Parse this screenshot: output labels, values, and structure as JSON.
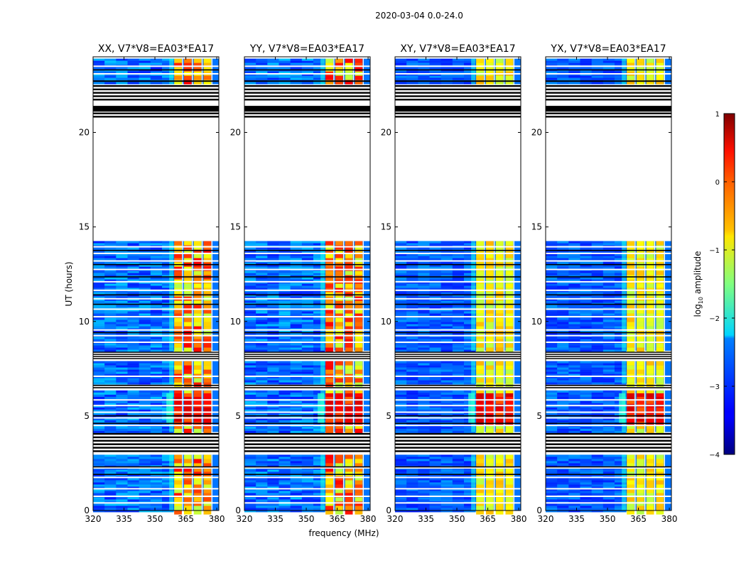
{
  "figure": {
    "suptitle": "2020-03-04 0.0-24.0",
    "xlabel": "frequency (MHz)",
    "ylabel": "UT (hours)",
    "colorbar_label_prefix": "log",
    "colorbar_label_sub": "10",
    "colorbar_label_suffix": " amplitude",
    "colorbar_ticks": [
      {
        "value": 1,
        "label": "1"
      },
      {
        "value": 0,
        "label": "0"
      },
      {
        "value": -1,
        "label": "−1"
      },
      {
        "value": -2,
        "label": "−2"
      },
      {
        "value": -3,
        "label": "−3"
      },
      {
        "value": -4,
        "label": "−4"
      }
    ]
  },
  "chart_data": [
    {
      "type": "heatmap",
      "title": "XX, V7*V8=EA03*EA17",
      "pol": "XX",
      "xlim": [
        320,
        381
      ],
      "ylim": [
        0,
        24
      ],
      "xticks": [
        320,
        335,
        350,
        365,
        380
      ],
      "yticks": [
        0,
        5,
        10,
        15,
        20
      ],
      "clim": [
        -4,
        1
      ],
      "band_start_mhz": 359,
      "band_end_mhz": 378
    },
    {
      "type": "heatmap",
      "title": "YY, V7*V8=EA03*EA17",
      "pol": "YY",
      "xlim": [
        320,
        381
      ],
      "ylim": [
        0,
        24
      ],
      "xticks": [
        320,
        335,
        350,
        365,
        380
      ],
      "yticks": [
        0,
        5,
        10,
        15,
        20
      ],
      "clim": [
        -4,
        1
      ],
      "band_start_mhz": 359,
      "band_end_mhz": 378
    },
    {
      "type": "heatmap",
      "title": "XY, V7*V8=EA03*EA17",
      "pol": "XY",
      "xlim": [
        320,
        381
      ],
      "ylim": [
        0,
        24
      ],
      "xticks": [
        320,
        335,
        350,
        365,
        380
      ],
      "yticks": [
        0,
        5,
        10,
        15,
        20
      ],
      "clim": [
        -4,
        1
      ],
      "band_start_mhz": 359,
      "band_end_mhz": 378
    },
    {
      "type": "heatmap",
      "title": "YX, V7*V8=EA03*EA17",
      "pol": "YX",
      "xlim": [
        320,
        381
      ],
      "ylim": [
        0,
        24
      ],
      "xticks": [
        320,
        335,
        350,
        365,
        380
      ],
      "yticks": [
        0,
        5,
        10,
        15,
        20
      ],
      "clim": [
        -4,
        1
      ],
      "band_start_mhz": 359,
      "band_end_mhz": 378
    }
  ]
}
